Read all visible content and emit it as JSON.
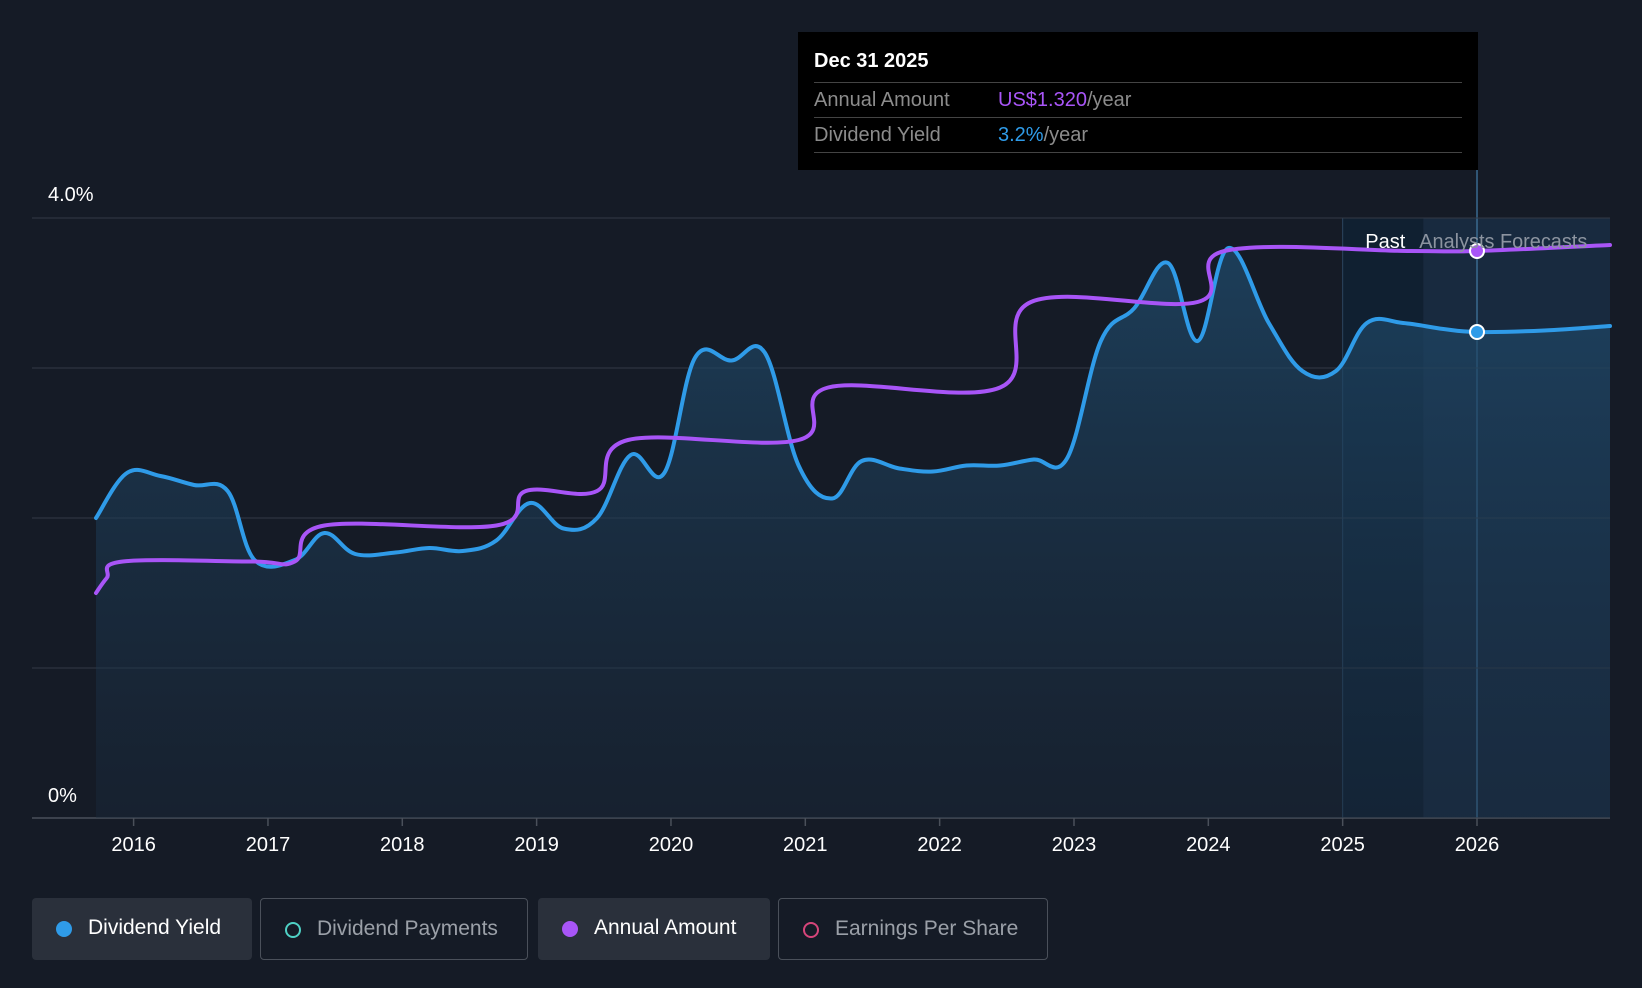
{
  "tooltip": {
    "date": "Dec 31 2025",
    "rows": [
      {
        "label": "Annual Amount",
        "value": "US$1.320",
        "unit": "/year",
        "color": "#a855f7"
      },
      {
        "label": "Dividend Yield",
        "value": "3.2%",
        "unit": "/year",
        "color": "#2f9be8"
      }
    ]
  },
  "legend": [
    {
      "label": "Dividend Yield",
      "color": "#2f9be8",
      "active": true
    },
    {
      "label": "Dividend Payments",
      "color": "#4fd1c5",
      "active": false
    },
    {
      "label": "Annual Amount",
      "color": "#a855f7",
      "active": true
    },
    {
      "label": "Earnings Per Share",
      "color": "#d6457a",
      "active": false
    }
  ],
  "chart_data": {
    "type": "line",
    "y_axis_labels": [
      "4.0%",
      "0%"
    ],
    "ylim": [
      0,
      4.0
    ],
    "xlim": [
      2015.72,
      2026.99
    ],
    "x_ticks": [
      "2016",
      "2017",
      "2018",
      "2019",
      "2020",
      "2021",
      "2022",
      "2023",
      "2024",
      "2025",
      "2026"
    ],
    "x_tick_values": [
      2016,
      2017,
      2018,
      2019,
      2020,
      2021,
      2022,
      2023,
      2024,
      2025,
      2026
    ],
    "grid": true,
    "period_labels": {
      "past": "Past",
      "forecast": "Analysts Forecasts"
    },
    "forecast_start": 2025.0,
    "past_end": 2025.6,
    "highlight_x": 2026.0,
    "series": [
      {
        "name": "Dividend Yield",
        "color": "#2f9be8",
        "area": true,
        "points": [
          [
            2015.72,
            2.0
          ],
          [
            2015.95,
            2.3
          ],
          [
            2016.2,
            2.28
          ],
          [
            2016.45,
            2.22
          ],
          [
            2016.7,
            2.18
          ],
          [
            2016.9,
            1.72
          ],
          [
            2017.2,
            1.72
          ],
          [
            2017.42,
            1.9
          ],
          [
            2017.65,
            1.76
          ],
          [
            2017.95,
            1.77
          ],
          [
            2018.2,
            1.8
          ],
          [
            2018.45,
            1.78
          ],
          [
            2018.7,
            1.85
          ],
          [
            2018.95,
            2.1
          ],
          [
            2019.2,
            1.93
          ],
          [
            2019.45,
            2.0
          ],
          [
            2019.7,
            2.42
          ],
          [
            2019.95,
            2.3
          ],
          [
            2020.18,
            3.07
          ],
          [
            2020.45,
            3.05
          ],
          [
            2020.7,
            3.1
          ],
          [
            2020.95,
            2.35
          ],
          [
            2021.2,
            2.13
          ],
          [
            2021.42,
            2.38
          ],
          [
            2021.7,
            2.33
          ],
          [
            2021.95,
            2.31
          ],
          [
            2022.2,
            2.35
          ],
          [
            2022.45,
            2.35
          ],
          [
            2022.7,
            2.39
          ],
          [
            2022.95,
            2.4
          ],
          [
            2023.2,
            3.18
          ],
          [
            2023.45,
            3.4
          ],
          [
            2023.7,
            3.7
          ],
          [
            2023.92,
            3.18
          ],
          [
            2024.15,
            3.8
          ],
          [
            2024.45,
            3.3
          ],
          [
            2024.7,
            2.98
          ],
          [
            2024.95,
            2.98
          ],
          [
            2025.18,
            3.3
          ],
          [
            2025.45,
            3.3
          ],
          [
            2025.75,
            3.26
          ],
          [
            2026.0,
            3.24
          ],
          [
            2026.5,
            3.25
          ],
          [
            2026.99,
            3.28
          ]
        ]
      },
      {
        "name": "Annual Amount",
        "color": "#a855f7",
        "area": false,
        "points": [
          [
            2015.72,
            1.5
          ],
          [
            2015.8,
            1.6
          ],
          [
            2015.92,
            1.71
          ],
          [
            2016.88,
            1.71
          ],
          [
            2017.2,
            1.71
          ],
          [
            2017.42,
            1.95
          ],
          [
            2018.7,
            1.95
          ],
          [
            2018.92,
            2.18
          ],
          [
            2019.45,
            2.18
          ],
          [
            2019.68,
            2.52
          ],
          [
            2020.95,
            2.52
          ],
          [
            2021.17,
            2.87
          ],
          [
            2022.45,
            2.87
          ],
          [
            2022.68,
            3.44
          ],
          [
            2023.92,
            3.44
          ],
          [
            2024.12,
            3.78
          ],
          [
            2025.5,
            3.78
          ],
          [
            2026.0,
            3.78
          ],
          [
            2026.99,
            3.82
          ]
        ]
      }
    ]
  }
}
